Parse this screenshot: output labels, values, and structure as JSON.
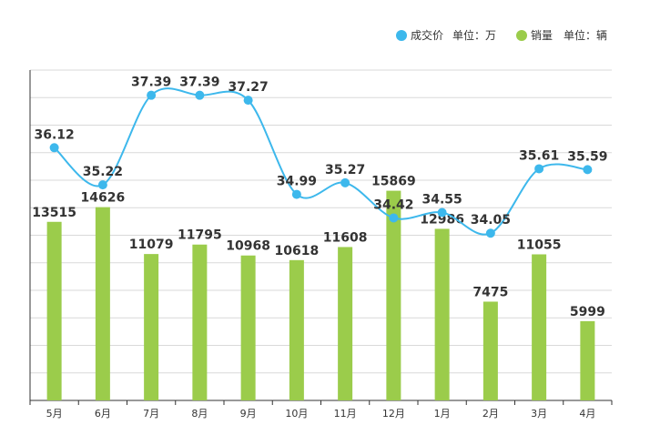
{
  "chart_data": {
    "type": "bar",
    "categories": [
      "5月",
      "6月",
      "7月",
      "8月",
      "9月",
      "10月",
      "11月",
      "12月",
      "1月",
      "2月",
      "3月",
      "4月"
    ],
    "series": [
      {
        "name": "成交价 单位：万",
        "type": "line",
        "color": "#3db8ec",
        "values": [
          36.12,
          35.22,
          37.39,
          37.39,
          37.27,
          34.99,
          35.27,
          34.42,
          34.55,
          34.05,
          35.61,
          35.59
        ]
      },
      {
        "name": "销量 单位：辆",
        "type": "bar",
        "color": "#9bcc4b",
        "values": [
          13515,
          14626,
          11079,
          11795,
          10968,
          10618,
          11608,
          15869,
          12986,
          7475,
          11055,
          5999
        ]
      }
    ],
    "legend": [
      {
        "label": "成交价",
        "unit": "单位：万",
        "color": "#3db8ec"
      },
      {
        "label": "销量",
        "unit": "单位：辆",
        "color": "#9bcc4b"
      }
    ],
    "legend_position": "top-right",
    "grid": true
  }
}
